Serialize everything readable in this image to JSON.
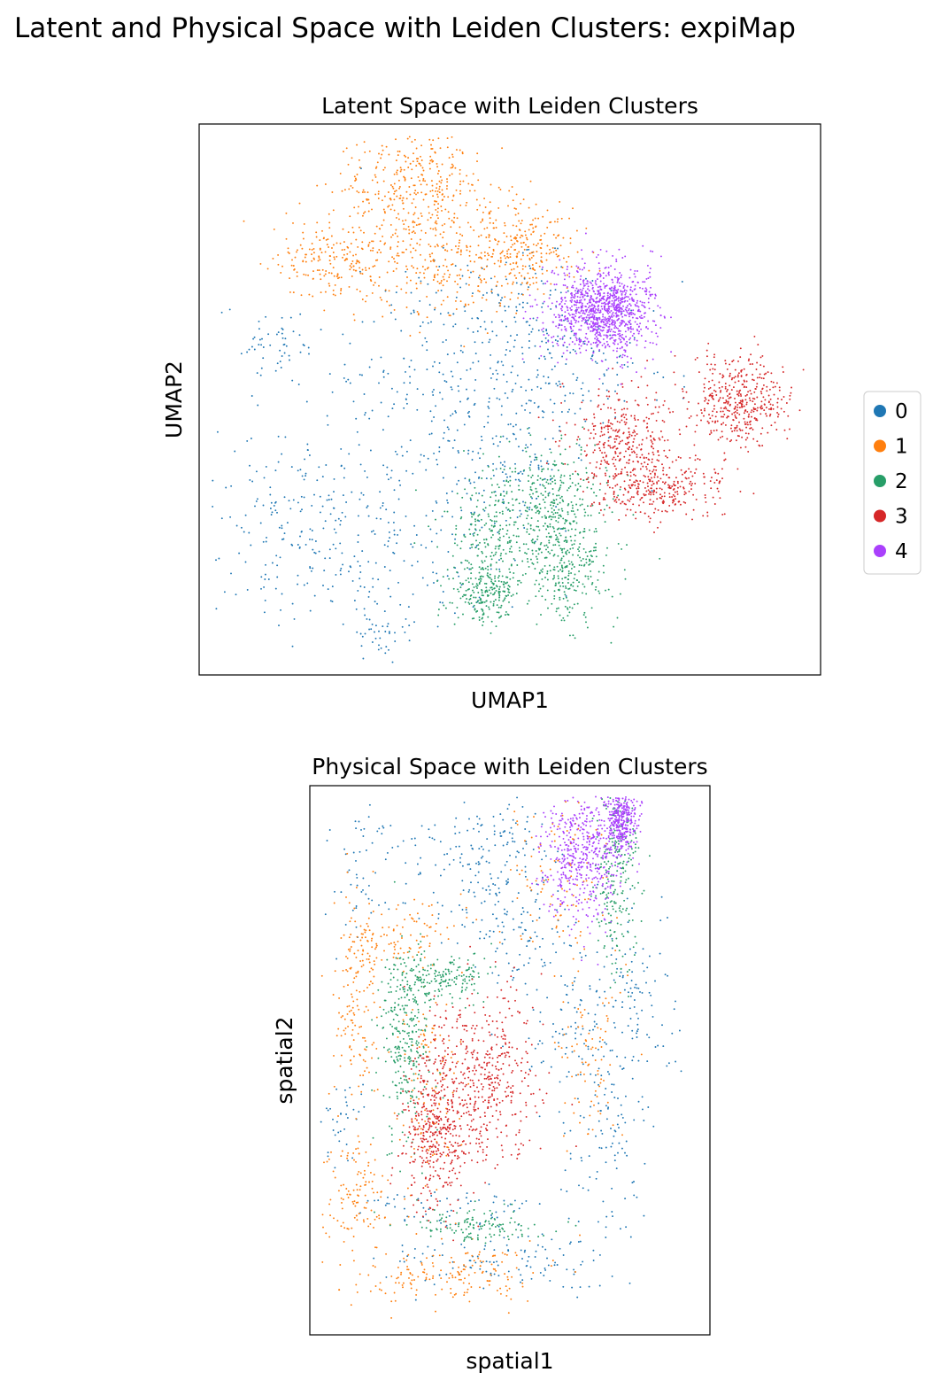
{
  "figure": {
    "suptitle": "Latent and Physical Space with Leiden Clusters: expiMap"
  },
  "palette": {
    "0": "#1f77b4",
    "1": "#ff7f0e",
    "2": "#279e68",
    "3": "#d62728",
    "4": "#aa40fc"
  },
  "legend": {
    "items": [
      {
        "label": "0",
        "color": "#1f77b4"
      },
      {
        "label": "1",
        "color": "#ff7f0e"
      },
      {
        "label": "2",
        "color": "#279e68"
      },
      {
        "label": "3",
        "color": "#d62728"
      },
      {
        "label": "4",
        "color": "#aa40fc"
      }
    ]
  },
  "chart_data": [
    {
      "type": "scatter",
      "title": "Latent Space with Leiden Clusters",
      "xlabel": "UMAP1",
      "ylabel": "UMAP2",
      "grid": false,
      "ticks": false,
      "legend_position": "right",
      "point_groups": [
        {
          "cluster": "0",
          "x": 0.5,
          "y": 0.33,
          "sx": 0.1,
          "sy": 0.06,
          "weight": 0.14
        },
        {
          "cluster": "0",
          "x": 0.4,
          "y": 0.5,
          "sx": 0.09,
          "sy": 0.1,
          "weight": 0.2
        },
        {
          "cluster": "0",
          "x": 0.16,
          "y": 0.72,
          "sx": 0.08,
          "sy": 0.09,
          "weight": 0.18
        },
        {
          "cluster": "0",
          "x": 0.32,
          "y": 0.75,
          "sx": 0.09,
          "sy": 0.08,
          "weight": 0.16
        },
        {
          "cluster": "0",
          "x": 0.12,
          "y": 0.4,
          "sx": 0.04,
          "sy": 0.03,
          "weight": 0.05
        },
        {
          "cluster": "0",
          "x": 0.29,
          "y": 0.92,
          "sx": 0.025,
          "sy": 0.025,
          "weight": 0.04
        },
        {
          "cluster": "0",
          "x": 0.58,
          "y": 0.46,
          "sx": 0.09,
          "sy": 0.06,
          "weight": 0.14
        },
        {
          "cluster": "0",
          "x": 0.5,
          "y": 0.62,
          "sx": 0.05,
          "sy": 0.06,
          "weight": 0.09
        },
        {
          "cluster": "1",
          "x": 0.35,
          "y": 0.12,
          "sx": 0.06,
          "sy": 0.06,
          "weight": 0.38
        },
        {
          "cluster": "1",
          "x": 0.22,
          "y": 0.25,
          "sx": 0.05,
          "sy": 0.04,
          "weight": 0.2
        },
        {
          "cluster": "1",
          "x": 0.42,
          "y": 0.26,
          "sx": 0.07,
          "sy": 0.05,
          "weight": 0.24
        },
        {
          "cluster": "1",
          "x": 0.53,
          "y": 0.22,
          "sx": 0.04,
          "sy": 0.04,
          "weight": 0.18
        },
        {
          "cluster": "2",
          "x": 0.56,
          "y": 0.68,
          "sx": 0.05,
          "sy": 0.05,
          "weight": 0.3
        },
        {
          "cluster": "2",
          "x": 0.47,
          "y": 0.75,
          "sx": 0.04,
          "sy": 0.05,
          "weight": 0.2
        },
        {
          "cluster": "2",
          "x": 0.59,
          "y": 0.8,
          "sx": 0.04,
          "sy": 0.05,
          "weight": 0.3
        },
        {
          "cluster": "2",
          "x": 0.46,
          "y": 0.85,
          "sx": 0.025,
          "sy": 0.025,
          "weight": 0.2
        },
        {
          "cluster": "3",
          "x": 0.68,
          "y": 0.57,
          "sx": 0.04,
          "sy": 0.04,
          "weight": 0.3
        },
        {
          "cluster": "3",
          "x": 0.74,
          "y": 0.66,
          "sx": 0.05,
          "sy": 0.03,
          "weight": 0.3
        },
        {
          "cluster": "3",
          "x": 0.87,
          "y": 0.5,
          "sx": 0.04,
          "sy": 0.04,
          "weight": 0.4
        },
        {
          "cluster": "4",
          "x": 0.65,
          "y": 0.34,
          "sx": 0.04,
          "sy": 0.04,
          "weight": 1.0
        }
      ]
    },
    {
      "type": "scatter",
      "title": "Physical Space with Leiden Clusters",
      "xlabel": "spatial1",
      "ylabel": "spatial2",
      "grid": false,
      "ticks": false,
      "point_groups": [
        {
          "cluster": "0",
          "x": 0.12,
          "y": 0.17,
          "sx": 0.04,
          "sy": 0.06,
          "weight": 0.06
        },
        {
          "cluster": "0",
          "x": 0.35,
          "y": 0.14,
          "sx": 0.1,
          "sy": 0.05,
          "weight": 0.1
        },
        {
          "cluster": "0",
          "x": 0.47,
          "y": 0.2,
          "sx": 0.07,
          "sy": 0.06,
          "weight": 0.12
        },
        {
          "cluster": "0",
          "x": 0.5,
          "y": 0.07,
          "sx": 0.05,
          "sy": 0.04,
          "weight": 0.05
        },
        {
          "cluster": "0",
          "x": 0.65,
          "y": 0.42,
          "sx": 0.07,
          "sy": 0.07,
          "weight": 0.12
        },
        {
          "cluster": "0",
          "x": 0.82,
          "y": 0.38,
          "sx": 0.05,
          "sy": 0.08,
          "weight": 0.1
        },
        {
          "cluster": "0",
          "x": 0.75,
          "y": 0.62,
          "sx": 0.06,
          "sy": 0.1,
          "weight": 0.14
        },
        {
          "cluster": "0",
          "x": 0.47,
          "y": 0.86,
          "sx": 0.14,
          "sy": 0.03,
          "weight": 0.14
        },
        {
          "cluster": "0",
          "x": 0.38,
          "y": 0.77,
          "sx": 0.12,
          "sy": 0.02,
          "weight": 0.07
        },
        {
          "cluster": "0",
          "x": 0.09,
          "y": 0.6,
          "sx": 0.03,
          "sy": 0.05,
          "weight": 0.04
        },
        {
          "cluster": "0",
          "x": 0.55,
          "y": 0.29,
          "sx": 0.08,
          "sy": 0.04,
          "weight": 0.06
        },
        {
          "cluster": "1",
          "x": 0.12,
          "y": 0.38,
          "sx": 0.03,
          "sy": 0.1,
          "weight": 0.18
        },
        {
          "cluster": "1",
          "x": 0.22,
          "y": 0.27,
          "sx": 0.08,
          "sy": 0.03,
          "weight": 0.12
        },
        {
          "cluster": "1",
          "x": 0.12,
          "y": 0.75,
          "sx": 0.04,
          "sy": 0.05,
          "weight": 0.14
        },
        {
          "cluster": "1",
          "x": 0.35,
          "y": 0.89,
          "sx": 0.12,
          "sy": 0.025,
          "weight": 0.2
        },
        {
          "cluster": "1",
          "x": 0.3,
          "y": 0.52,
          "sx": 0.04,
          "sy": 0.1,
          "weight": 0.14
        },
        {
          "cluster": "1",
          "x": 0.62,
          "y": 0.17,
          "sx": 0.06,
          "sy": 0.08,
          "weight": 0.12
        },
        {
          "cluster": "1",
          "x": 0.7,
          "y": 0.48,
          "sx": 0.04,
          "sy": 0.08,
          "weight": 0.1
        },
        {
          "cluster": "2",
          "x": 0.24,
          "y": 0.47,
          "sx": 0.03,
          "sy": 0.09,
          "weight": 0.35
        },
        {
          "cluster": "2",
          "x": 0.34,
          "y": 0.35,
          "sx": 0.06,
          "sy": 0.02,
          "weight": 0.2
        },
        {
          "cluster": "2",
          "x": 0.77,
          "y": 0.15,
          "sx": 0.03,
          "sy": 0.1,
          "weight": 0.3
        },
        {
          "cluster": "2",
          "x": 0.42,
          "y": 0.8,
          "sx": 0.08,
          "sy": 0.015,
          "weight": 0.15
        },
        {
          "cluster": "3",
          "x": 0.31,
          "y": 0.63,
          "sx": 0.04,
          "sy": 0.07,
          "weight": 0.45
        },
        {
          "cluster": "3",
          "x": 0.44,
          "y": 0.52,
          "sx": 0.07,
          "sy": 0.08,
          "weight": 0.55
        },
        {
          "cluster": "4",
          "x": 0.68,
          "y": 0.13,
          "sx": 0.05,
          "sy": 0.06,
          "weight": 0.6
        },
        {
          "cluster": "4",
          "x": 0.78,
          "y": 0.06,
          "sx": 0.02,
          "sy": 0.03,
          "weight": 0.4
        }
      ]
    }
  ]
}
